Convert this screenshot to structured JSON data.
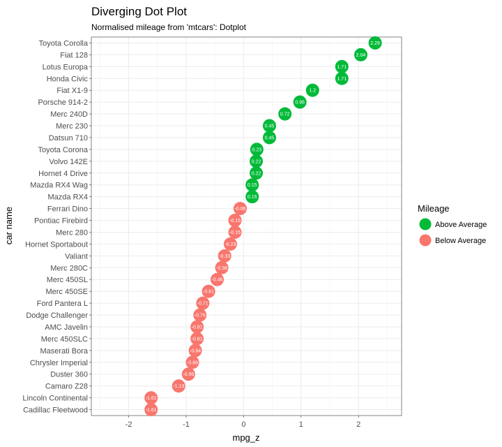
{
  "chart_data": {
    "type": "scatter",
    "title": "Diverging Dot Plot",
    "subtitle": "Normalised mileage from 'mtcars': Dotplot",
    "xlabel": "mpg_z",
    "ylabel": "car name",
    "xlim": [
      -2.65,
      2.75
    ],
    "x_ticks": [
      "-2",
      "-1",
      "0",
      "1",
      "2"
    ],
    "grid": true,
    "legend": {
      "title": "Mileage",
      "position": "right",
      "items": [
        {
          "label": "Above Average",
          "color": "#00ba38"
        },
        {
          "label": "Below Average",
          "color": "#f8766d"
        }
      ]
    },
    "points": [
      {
        "name": "Toyota Corolla",
        "value": 2.29,
        "label": "2.29",
        "group": "Above Average"
      },
      {
        "name": "Fiat 128",
        "value": 2.04,
        "label": "2.04",
        "group": "Above Average"
      },
      {
        "name": "Lotus Europa",
        "value": 1.71,
        "label": "1.71",
        "group": "Above Average"
      },
      {
        "name": "Honda Civic",
        "value": 1.71,
        "label": "1.71",
        "group": "Above Average"
      },
      {
        "name": "Fiat X1-9",
        "value": 1.2,
        "label": "1.2",
        "group": "Above Average"
      },
      {
        "name": "Porsche 914-2",
        "value": 0.98,
        "label": "0.98",
        "group": "Above Average"
      },
      {
        "name": "Merc 240D",
        "value": 0.72,
        "label": "0.72",
        "group": "Above Average"
      },
      {
        "name": "Merc 230",
        "value": 0.45,
        "label": "0.45",
        "group": "Above Average"
      },
      {
        "name": "Datsun 710",
        "value": 0.45,
        "label": "0.45",
        "group": "Above Average"
      },
      {
        "name": "Toyota Corona",
        "value": 0.23,
        "label": "0.23",
        "group": "Above Average"
      },
      {
        "name": "Volvo 142E",
        "value": 0.22,
        "label": "0.22",
        "group": "Above Average"
      },
      {
        "name": "Hornet 4 Drive",
        "value": 0.22,
        "label": "0.22",
        "group": "Above Average"
      },
      {
        "name": "Mazda RX4 Wag",
        "value": 0.15,
        "label": "0.15",
        "group": "Above Average"
      },
      {
        "name": "Mazda RX4",
        "value": 0.15,
        "label": "0.15",
        "group": "Above Average"
      },
      {
        "name": "Ferrari Dino",
        "value": -0.06,
        "label": "-0.06",
        "group": "Below Average"
      },
      {
        "name": "Pontiac Firebird",
        "value": -0.15,
        "label": "-0.15",
        "group": "Below Average"
      },
      {
        "name": "Merc 280",
        "value": -0.15,
        "label": "-0.15",
        "group": "Below Average"
      },
      {
        "name": "Hornet Sportabout",
        "value": -0.23,
        "label": "-0.23",
        "group": "Below Average"
      },
      {
        "name": "Valiant",
        "value": -0.33,
        "label": "-0.33",
        "group": "Below Average"
      },
      {
        "name": "Merc 280C",
        "value": -0.38,
        "label": "-0.38",
        "group": "Below Average"
      },
      {
        "name": "Merc 450SL",
        "value": -0.46,
        "label": "-0.46",
        "group": "Below Average"
      },
      {
        "name": "Merc 450SE",
        "value": -0.61,
        "label": "-0.61",
        "group": "Below Average"
      },
      {
        "name": "Ford Pantera L",
        "value": -0.71,
        "label": "-0.71",
        "group": "Below Average"
      },
      {
        "name": "Dodge Challenger",
        "value": -0.76,
        "label": "-0.76",
        "group": "Below Average"
      },
      {
        "name": "AMC Javelin",
        "value": -0.81,
        "label": "-0.81",
        "group": "Below Average"
      },
      {
        "name": "Merc 450SLC",
        "value": -0.81,
        "label": "-0.81",
        "group": "Below Average"
      },
      {
        "name": "Maserati Bora",
        "value": -0.84,
        "label": "-0.84",
        "group": "Below Average"
      },
      {
        "name": "Chrysler Imperial",
        "value": -0.89,
        "label": "-0.89",
        "group": "Below Average"
      },
      {
        "name": "Duster 360",
        "value": -0.96,
        "label": "-0.96",
        "group": "Below Average"
      },
      {
        "name": "Camaro Z28",
        "value": -1.13,
        "label": "-1.13",
        "group": "Below Average"
      },
      {
        "name": "Lincoln Continental",
        "value": -1.61,
        "label": "-1.61",
        "group": "Below Average"
      },
      {
        "name": "Cadillac Fleetwood",
        "value": -1.61,
        "label": "-1.61",
        "group": "Below Average"
      }
    ]
  }
}
